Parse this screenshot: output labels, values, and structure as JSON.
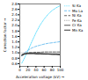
{
  "chart_data": {
    "type": "line",
    "xlabel": "Acceleration voltage (kV)",
    "ylabel": "Correction factor",
    "x": [
      5,
      10,
      15,
      20,
      25,
      30,
      35,
      40,
      50,
      60,
      70,
      80,
      90,
      100
    ],
    "series": [
      {
        "name": "Si Ka",
        "color": "#55ddff",
        "line_style": "dotted",
        "values": [
          0.62,
          0.76,
          0.92,
          1.08,
          1.25,
          1.42,
          1.58,
          1.74,
          2.02,
          2.24,
          2.42,
          2.56,
          2.66,
          2.74
        ]
      },
      {
        "name": "Mo La",
        "color": "#66bbee",
        "line_style": "dashed",
        "values": [
          0.88,
          0.97,
          1.04,
          1.09,
          1.14,
          1.18,
          1.21,
          1.24,
          1.28,
          1.32,
          1.35,
          1.37,
          1.39,
          1.41
        ]
      },
      {
        "name": "Ni Ka",
        "color": "#555555",
        "line_style": "dashed",
        "values": [
          0.93,
          0.97,
          0.99,
          1.0,
          1.01,
          1.01,
          1.02,
          1.02,
          1.02,
          1.03,
          1.03,
          1.03,
          1.03,
          1.03
        ]
      },
      {
        "name": "Fe Ka",
        "color": "#888888",
        "line_style": "dotted",
        "values": [
          0.93,
          0.96,
          0.97,
          0.98,
          0.98,
          0.98,
          0.98,
          0.98,
          0.97,
          0.97,
          0.96,
          0.96,
          0.96,
          0.95
        ]
      },
      {
        "name": "Cr Ka",
        "color": "#444444",
        "line_style": "solid",
        "values": [
          0.91,
          0.95,
          0.97,
          0.98,
          0.98,
          0.98,
          0.98,
          0.97,
          0.97,
          0.96,
          0.96,
          0.95,
          0.95,
          0.94
        ]
      },
      {
        "name": "Mn Ka",
        "color": "#222222",
        "line_style": "solid",
        "values": [
          0.9,
          0.94,
          0.96,
          0.97,
          0.97,
          0.97,
          0.97,
          0.96,
          0.96,
          0.95,
          0.95,
          0.94,
          0.94,
          0.93
        ]
      }
    ],
    "hline": {
      "value": 1.0,
      "color": "#bbbbbb"
    },
    "xlim": [
      0,
      100
    ],
    "ylim": [
      0.5,
      2.8
    ],
    "xticks": [
      0,
      20,
      40,
      60,
      80,
      100
    ],
    "yticks": [
      0.6,
      0.8,
      {
        "value": 1.0,
        "label": "1.0"
      },
      1.2,
      1.4,
      1.6,
      1.8,
      {
        "value": 2.0,
        "label": "2.0"
      },
      2.2,
      2.4,
      2.6,
      2.8
    ],
    "grid": false,
    "legend": "upper right"
  }
}
